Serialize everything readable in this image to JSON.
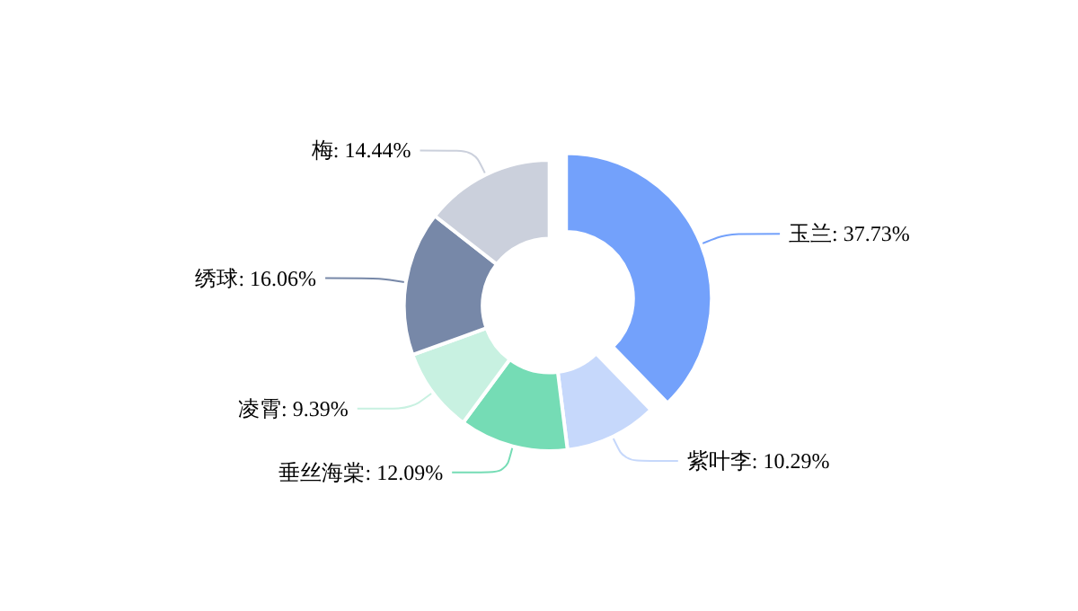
{
  "chart_data": {
    "type": "donut",
    "categories": [
      "玉兰",
      "紫叶李",
      "垂丝海棠",
      "凌霄",
      "绣球",
      "梅"
    ],
    "values": [
      37.73,
      10.29,
      12.09,
      9.39,
      16.06,
      14.44
    ],
    "value_labels": [
      "37.73%",
      "10.29%",
      "12.09%",
      "9.39%",
      "16.06%",
      "14.44%"
    ],
    "colors": [
      "#73a1fb",
      "#c6d8fb",
      "#75dcb5",
      "#c8f1e1",
      "#7788a8",
      "#cbd0dc"
    ],
    "legend": false
  }
}
